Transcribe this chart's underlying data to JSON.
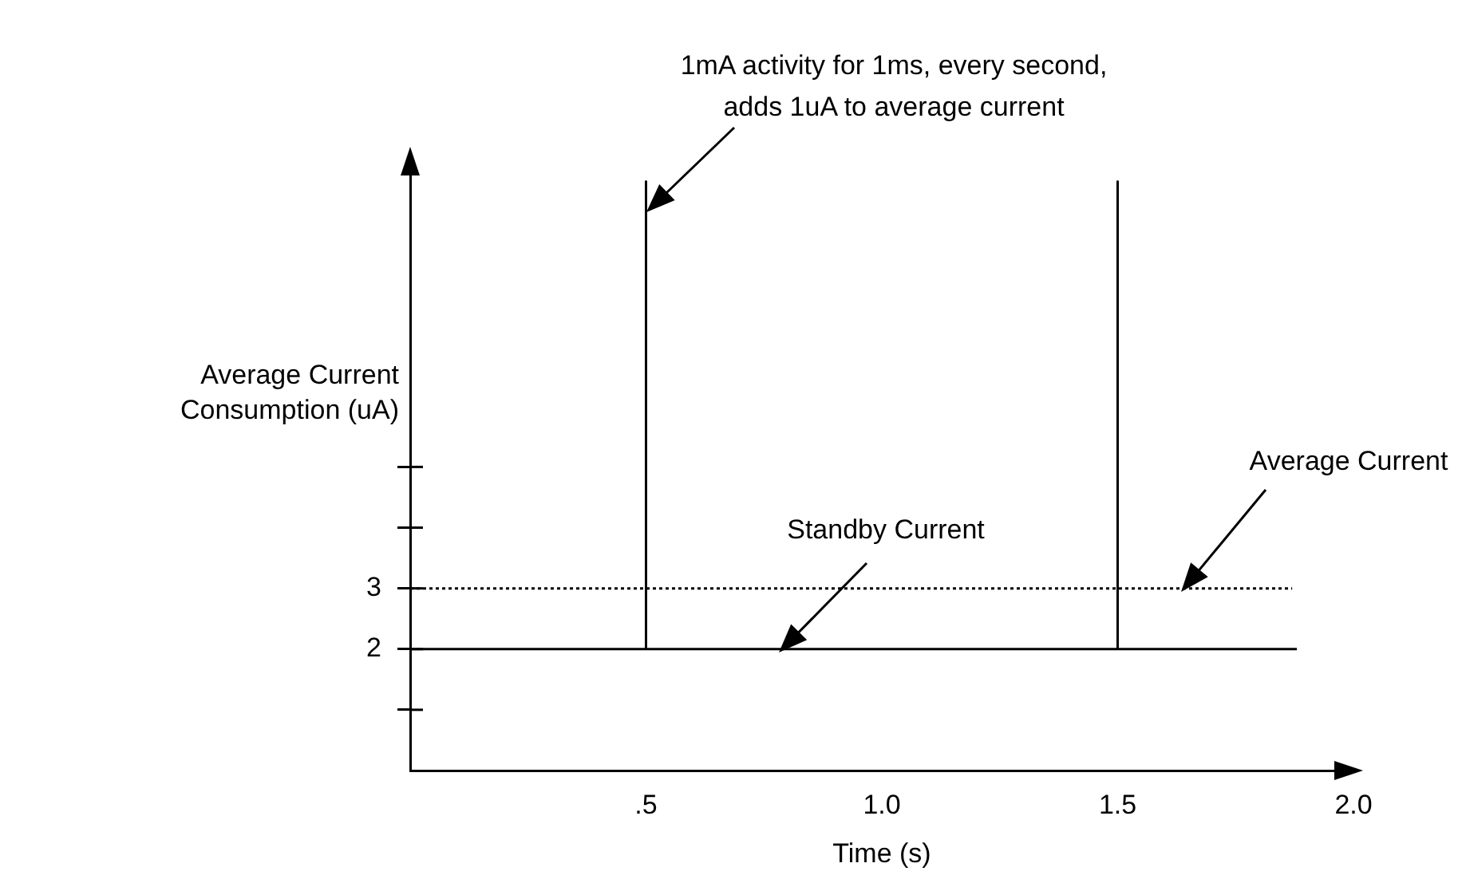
{
  "chart_data": {
    "type": "line",
    "xlabel": "Time (s)",
    "ylabel": "Average Current\nConsumption (uA)",
    "xlim": [
      0,
      2
    ],
    "xticks": [
      {
        "value": 0.5,
        "label": ".5"
      },
      {
        "value": 1,
        "label": "1.0"
      },
      1.5,
      {
        "value": 2,
        "label": "2.0"
      }
    ],
    "ylim": [
      0,
      9.8
    ],
    "yticks": [
      {
        "value": 1,
        "label": null
      },
      2,
      3,
      {
        "value": 4,
        "label": null
      },
      {
        "value": 5,
        "label": null
      }
    ],
    "marker": "none",
    "series": [
      {
        "color": "#000000",
        "line_style": "solid",
        "x": [
          0,
          0.5,
          0.5,
          0.5,
          1.5,
          1.5,
          1.5,
          1.88
        ],
        "values": [
          2,
          2,
          9.7,
          2,
          2,
          9.7,
          2,
          2
        ]
      },
      {
        "color": "#000000",
        "line_style": "dotted",
        "x": [
          0,
          1.87
        ],
        "values": [
          3,
          3
        ]
      }
    ],
    "annotations": [
      "1mA activity for 1ms, every second,\nadds 1uA to average current",
      "Standby Current",
      "Average Current"
    ]
  }
}
